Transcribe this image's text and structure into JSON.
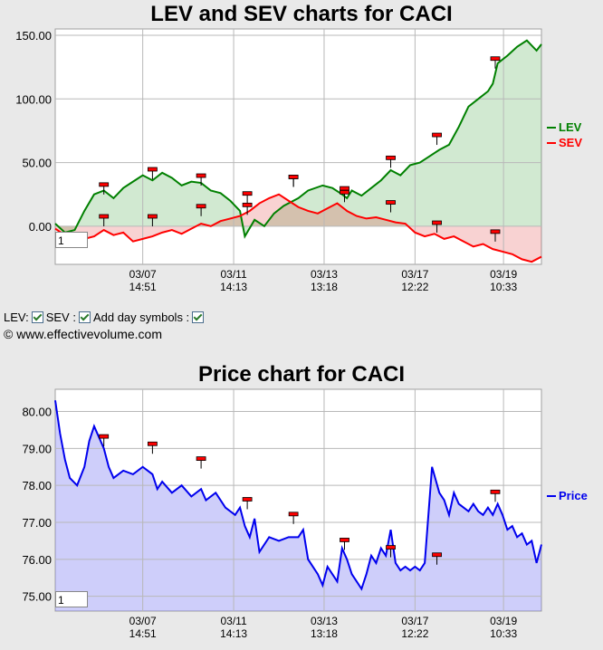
{
  "chart_data": [
    {
      "type": "area",
      "title": "LEV and SEV charts for CACI",
      "ylim": [
        -30,
        155
      ],
      "y_ticks": [
        "150.00",
        "100.00",
        "50.00",
        "0.00"
      ],
      "y_tick_values": [
        150,
        100,
        50,
        0
      ],
      "x_ticks": [
        [
          "03/07",
          "14:51"
        ],
        [
          "03/11",
          "14:13"
        ],
        [
          "03/13",
          "13:18"
        ],
        [
          "03/17",
          "12:22"
        ],
        [
          "03/19",
          "10:33"
        ]
      ],
      "x_tick_positions": [
        0.18,
        0.367,
        0.553,
        0.74,
        0.922
      ],
      "series": [
        {
          "name": "LEV",
          "color": "#008000",
          "values": [
            [
              0,
              2
            ],
            [
              0.02,
              -5
            ],
            [
              0.04,
              -3
            ],
            [
              0.06,
              12
            ],
            [
              0.08,
              25
            ],
            [
              0.1,
              28
            ],
            [
              0.12,
              22
            ],
            [
              0.14,
              30
            ],
            [
              0.16,
              35
            ],
            [
              0.18,
              40
            ],
            [
              0.2,
              36
            ],
            [
              0.22,
              42
            ],
            [
              0.24,
              38
            ],
            [
              0.26,
              32
            ],
            [
              0.28,
              35
            ],
            [
              0.3,
              34
            ],
            [
              0.32,
              28
            ],
            [
              0.34,
              26
            ],
            [
              0.36,
              20
            ],
            [
              0.38,
              12
            ],
            [
              0.39,
              -8
            ],
            [
              0.41,
              5
            ],
            [
              0.43,
              0
            ],
            [
              0.45,
              10
            ],
            [
              0.47,
              16
            ],
            [
              0.5,
              22
            ],
            [
              0.52,
              28
            ],
            [
              0.55,
              32
            ],
            [
              0.57,
              30
            ],
            [
              0.59,
              25
            ],
            [
              0.6,
              22
            ],
            [
              0.61,
              28
            ],
            [
              0.63,
              24
            ],
            [
              0.65,
              30
            ],
            [
              0.67,
              36
            ],
            [
              0.69,
              44
            ],
            [
              0.71,
              40
            ],
            [
              0.73,
              48
            ],
            [
              0.75,
              50
            ],
            [
              0.77,
              55
            ],
            [
              0.79,
              60
            ],
            [
              0.81,
              64
            ],
            [
              0.83,
              78
            ],
            [
              0.85,
              94
            ],
            [
              0.87,
              100
            ],
            [
              0.89,
              106
            ],
            [
              0.9,
              112
            ],
            [
              0.91,
              128
            ],
            [
              0.93,
              134
            ],
            [
              0.95,
              141
            ],
            [
              0.97,
              146
            ],
            [
              0.99,
              138
            ],
            [
              1,
              143
            ]
          ]
        },
        {
          "name": "SEV",
          "color": "#ff0000",
          "values": [
            [
              0,
              -2
            ],
            [
              0.04,
              -12
            ],
            [
              0.08,
              -8
            ],
            [
              0.1,
              -3
            ],
            [
              0.12,
              -7
            ],
            [
              0.14,
              -5
            ],
            [
              0.16,
              -12
            ],
            [
              0.18,
              -10
            ],
            [
              0.2,
              -8
            ],
            [
              0.22,
              -5
            ],
            [
              0.24,
              -3
            ],
            [
              0.26,
              -6
            ],
            [
              0.28,
              -2
            ],
            [
              0.3,
              2
            ],
            [
              0.32,
              0
            ],
            [
              0.34,
              4
            ],
            [
              0.36,
              6
            ],
            [
              0.38,
              8
            ],
            [
              0.4,
              12
            ],
            [
              0.42,
              18
            ],
            [
              0.44,
              22
            ],
            [
              0.46,
              25
            ],
            [
              0.48,
              20
            ],
            [
              0.5,
              15
            ],
            [
              0.52,
              12
            ],
            [
              0.54,
              10
            ],
            [
              0.56,
              14
            ],
            [
              0.58,
              18
            ],
            [
              0.6,
              12
            ],
            [
              0.62,
              8
            ],
            [
              0.64,
              6
            ],
            [
              0.66,
              7
            ],
            [
              0.68,
              5
            ],
            [
              0.7,
              3
            ],
            [
              0.72,
              2
            ],
            [
              0.74,
              -5
            ],
            [
              0.76,
              -8
            ],
            [
              0.78,
              -6
            ],
            [
              0.8,
              -10
            ],
            [
              0.82,
              -8
            ],
            [
              0.84,
              -12
            ],
            [
              0.86,
              -16
            ],
            [
              0.88,
              -14
            ],
            [
              0.9,
              -18
            ],
            [
              0.92,
              -20
            ],
            [
              0.94,
              -22
            ],
            [
              0.96,
              -26
            ],
            [
              0.98,
              -28
            ],
            [
              1,
              -24
            ]
          ]
        }
      ],
      "day_markers_lev": [
        [
          0.1,
          32
        ],
        [
          0.2,
          44
        ],
        [
          0.3,
          39
        ],
        [
          0.395,
          25
        ],
        [
          0.49,
          38
        ],
        [
          0.595,
          29
        ],
        [
          0.69,
          53
        ],
        [
          0.785,
          71
        ],
        [
          0.905,
          131
        ]
      ],
      "day_markers_sev": [
        [
          0.1,
          7
        ],
        [
          0.2,
          7
        ],
        [
          0.3,
          15
        ],
        [
          0.395,
          16
        ],
        [
          0.49,
          38
        ],
        [
          0.595,
          26
        ],
        [
          0.69,
          18
        ],
        [
          0.785,
          2
        ],
        [
          0.905,
          -5
        ]
      ],
      "legend": "right"
    },
    {
      "type": "area",
      "title": "Price chart for CACI",
      "ylim": [
        74.6,
        80.6
      ],
      "y_ticks": [
        "80.00",
        "79.00",
        "78.00",
        "77.00",
        "76.00",
        "75.00"
      ],
      "y_tick_values": [
        80,
        79,
        78,
        77,
        76,
        75
      ],
      "x_ticks": [
        [
          "03/07",
          "14:51"
        ],
        [
          "03/11",
          "14:13"
        ],
        [
          "03/13",
          "13:18"
        ],
        [
          "03/17",
          "12:22"
        ],
        [
          "03/19",
          "10:33"
        ]
      ],
      "x_tick_positions": [
        0.18,
        0.367,
        0.553,
        0.74,
        0.922
      ],
      "series": [
        {
          "name": "Price",
          "color": "#0000ee",
          "values": [
            [
              0,
              80.3
            ],
            [
              0.01,
              79.4
            ],
            [
              0.02,
              78.7
            ],
            [
              0.03,
              78.2
            ],
            [
              0.045,
              78.0
            ],
            [
              0.06,
              78.5
            ],
            [
              0.07,
              79.2
            ],
            [
              0.08,
              79.6
            ],
            [
              0.09,
              79.3
            ],
            [
              0.1,
              79.0
            ],
            [
              0.11,
              78.5
            ],
            [
              0.12,
              78.2
            ],
            [
              0.14,
              78.4
            ],
            [
              0.16,
              78.3
            ],
            [
              0.18,
              78.5
            ],
            [
              0.2,
              78.3
            ],
            [
              0.21,
              77.9
            ],
            [
              0.22,
              78.1
            ],
            [
              0.24,
              77.8
            ],
            [
              0.26,
              78.0
            ],
            [
              0.28,
              77.7
            ],
            [
              0.3,
              77.9
            ],
            [
              0.31,
              77.6
            ],
            [
              0.33,
              77.8
            ],
            [
              0.35,
              77.4
            ],
            [
              0.37,
              77.2
            ],
            [
              0.38,
              77.4
            ],
            [
              0.39,
              76.9
            ],
            [
              0.4,
              76.6
            ],
            [
              0.41,
              77.1
            ],
            [
              0.42,
              76.2
            ],
            [
              0.44,
              76.6
            ],
            [
              0.46,
              76.5
            ],
            [
              0.48,
              76.6
            ],
            [
              0.5,
              76.6
            ],
            [
              0.51,
              76.8
            ],
            [
              0.52,
              76.0
            ],
            [
              0.54,
              75.6
            ],
            [
              0.55,
              75.3
            ],
            [
              0.56,
              75.8
            ],
            [
              0.57,
              75.6
            ],
            [
              0.58,
              75.4
            ],
            [
              0.59,
              76.3
            ],
            [
              0.6,
              76.0
            ],
            [
              0.61,
              75.6
            ],
            [
              0.62,
              75.4
            ],
            [
              0.63,
              75.2
            ],
            [
              0.64,
              75.6
            ],
            [
              0.65,
              76.1
            ],
            [
              0.66,
              75.9
            ],
            [
              0.67,
              76.3
            ],
            [
              0.68,
              76.1
            ],
            [
              0.69,
              76.8
            ],
            [
              0.7,
              75.9
            ],
            [
              0.71,
              75.7
            ],
            [
              0.72,
              75.8
            ],
            [
              0.73,
              75.7
            ],
            [
              0.74,
              75.8
            ],
            [
              0.75,
              75.7
            ],
            [
              0.76,
              75.9
            ],
            [
              0.775,
              78.5
            ],
            [
              0.79,
              77.8
            ],
            [
              0.8,
              77.6
            ],
            [
              0.81,
              77.2
            ],
            [
              0.82,
              77.8
            ],
            [
              0.83,
              77.5
            ],
            [
              0.84,
              77.4
            ],
            [
              0.85,
              77.3
            ],
            [
              0.86,
              77.5
            ],
            [
              0.87,
              77.3
            ],
            [
              0.88,
              77.2
            ],
            [
              0.89,
              77.4
            ],
            [
              0.9,
              77.2
            ],
            [
              0.91,
              77.5
            ],
            [
              0.92,
              77.2
            ],
            [
              0.93,
              76.8
            ],
            [
              0.94,
              76.9
            ],
            [
              0.95,
              76.6
            ],
            [
              0.96,
              76.7
            ],
            [
              0.97,
              76.4
            ],
            [
              0.98,
              76.5
            ],
            [
              0.99,
              75.9
            ],
            [
              1,
              76.4
            ]
          ]
        }
      ],
      "day_markers": [
        [
          0.1,
          79.3
        ],
        [
          0.2,
          79.1
        ],
        [
          0.3,
          78.7
        ],
        [
          0.395,
          77.6
        ],
        [
          0.49,
          77.2
        ],
        [
          0.595,
          76.5
        ],
        [
          0.69,
          76.3
        ],
        [
          0.785,
          76.1
        ],
        [
          0.905,
          77.8
        ]
      ],
      "legend": "right"
    }
  ],
  "controls": {
    "lev_label": "LEV:",
    "sev_label": "SEV :",
    "day_symbols_label": "Add day symbols :"
  },
  "copyright": "© www.effectivevolume.com",
  "zoom_value": "1"
}
